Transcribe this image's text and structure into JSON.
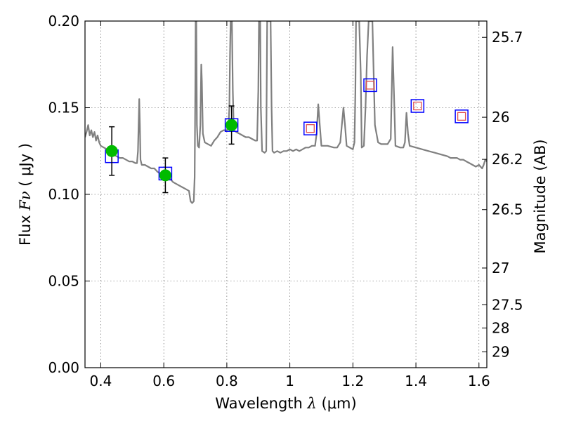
{
  "chart_data": {
    "type": "scatter",
    "x_axis": {
      "title_prefix": "Wavelength  ",
      "title_symbol": "λ",
      "title_suffix": " (μm)",
      "range": [
        0.35,
        1.625
      ],
      "ticks": [
        0.4,
        0.6,
        0.8,
        1.0,
        1.2,
        1.4,
        1.6
      ],
      "tick_labels": [
        "0.4",
        "0.6",
        "0.8",
        "1",
        "1.2",
        "1.4",
        "1.6"
      ]
    },
    "y_axis": {
      "title_prefix": "Flux  ",
      "title_symbol": "Fν",
      "title_suffix": "  ( μJy )",
      "range": [
        0.0,
        0.2
      ],
      "ticks": [
        0.0,
        0.05,
        0.1,
        0.15,
        0.2
      ],
      "tick_labels": [
        "0.00",
        "0.05",
        "0.10",
        "0.15",
        "0.20"
      ]
    },
    "y2_axis": {
      "title": "Magnitude (AB)",
      "ticks": [
        {
          "label": "25.7",
          "flux": 0.1906
        },
        {
          "label": "26",
          "flux": 0.1445
        },
        {
          "label": "26.2",
          "flux": 0.1202
        },
        {
          "label": "26.5",
          "flux": 0.0912
        },
        {
          "label": "27",
          "flux": 0.0575
        },
        {
          "label": "27.5",
          "flux": 0.0363
        },
        {
          "label": "28",
          "flux": 0.0229
        },
        {
          "label": "29",
          "flux": 0.0091
        }
      ]
    },
    "grid": true,
    "colors": {
      "spectrum": "#808080",
      "measured": "#00bb00",
      "model_box": "#0000ff",
      "predicted": "#e05050",
      "errorbar": "#000000"
    },
    "series": [
      {
        "type": "line",
        "points": [
          [
            0.35,
            0.133
          ],
          [
            0.355,
            0.136
          ],
          [
            0.36,
            0.14
          ],
          [
            0.365,
            0.134
          ],
          [
            0.37,
            0.137
          ],
          [
            0.375,
            0.133
          ],
          [
            0.38,
            0.136
          ],
          [
            0.385,
            0.131
          ],
          [
            0.39,
            0.134
          ],
          [
            0.395,
            0.13
          ],
          [
            0.4,
            0.128
          ],
          [
            0.41,
            0.127
          ],
          [
            0.42,
            0.126
          ],
          [
            0.43,
            0.125
          ],
          [
            0.44,
            0.123
          ],
          [
            0.45,
            0.122
          ],
          [
            0.46,
            0.121
          ],
          [
            0.47,
            0.121
          ],
          [
            0.48,
            0.12
          ],
          [
            0.49,
            0.119
          ],
          [
            0.5,
            0.119
          ],
          [
            0.51,
            0.118
          ],
          [
            0.515,
            0.118
          ],
          [
            0.518,
            0.125
          ],
          [
            0.52,
            0.14
          ],
          [
            0.522,
            0.155
          ],
          [
            0.524,
            0.14
          ],
          [
            0.526,
            0.12
          ],
          [
            0.53,
            0.117
          ],
          [
            0.54,
            0.117
          ],
          [
            0.55,
            0.116
          ],
          [
            0.56,
            0.115
          ],
          [
            0.57,
            0.115
          ],
          [
            0.58,
            0.113
          ],
          [
            0.59,
            0.112
          ],
          [
            0.6,
            0.111
          ],
          [
            0.61,
            0.11
          ],
          [
            0.62,
            0.109
          ],
          [
            0.63,
            0.107
          ],
          [
            0.64,
            0.106
          ],
          [
            0.65,
            0.105
          ],
          [
            0.66,
            0.104
          ],
          [
            0.67,
            0.103
          ],
          [
            0.68,
            0.102
          ],
          [
            0.685,
            0.096
          ],
          [
            0.69,
            0.095
          ],
          [
            0.695,
            0.096
          ],
          [
            0.698,
            0.11
          ],
          [
            0.7,
            0.16
          ],
          [
            0.701,
            0.2
          ],
          [
            0.703,
            0.2
          ],
          [
            0.705,
            0.14
          ],
          [
            0.708,
            0.128
          ],
          [
            0.712,
            0.127
          ],
          [
            0.716,
            0.14
          ],
          [
            0.719,
            0.175
          ],
          [
            0.721,
            0.165
          ],
          [
            0.724,
            0.135
          ],
          [
            0.73,
            0.13
          ],
          [
            0.74,
            0.129
          ],
          [
            0.75,
            0.128
          ],
          [
            0.76,
            0.131
          ],
          [
            0.77,
            0.133
          ],
          [
            0.78,
            0.136
          ],
          [
            0.79,
            0.137
          ],
          [
            0.8,
            0.137
          ],
          [
            0.805,
            0.138
          ],
          [
            0.808,
            0.15
          ],
          [
            0.81,
            0.18
          ],
          [
            0.812,
            0.2
          ],
          [
            0.816,
            0.2
          ],
          [
            0.819,
            0.16
          ],
          [
            0.822,
            0.137
          ],
          [
            0.83,
            0.136
          ],
          [
            0.84,
            0.135
          ],
          [
            0.85,
            0.134
          ],
          [
            0.86,
            0.133
          ],
          [
            0.87,
            0.133
          ],
          [
            0.88,
            0.132
          ],
          [
            0.89,
            0.131
          ],
          [
            0.896,
            0.131
          ],
          [
            0.9,
            0.16
          ],
          [
            0.902,
            0.2
          ],
          [
            0.906,
            0.2
          ],
          [
            0.908,
            0.15
          ],
          [
            0.912,
            0.125
          ],
          [
            0.92,
            0.124
          ],
          [
            0.925,
            0.125
          ],
          [
            0.928,
            0.2
          ],
          [
            0.936,
            0.2
          ],
          [
            0.939,
            0.2
          ],
          [
            0.942,
            0.15
          ],
          [
            0.945,
            0.125
          ],
          [
            0.95,
            0.124
          ],
          [
            0.96,
            0.125
          ],
          [
            0.97,
            0.124
          ],
          [
            0.98,
            0.125
          ],
          [
            0.99,
            0.125
          ],
          [
            1.0,
            0.126
          ],
          [
            1.01,
            0.125
          ],
          [
            1.02,
            0.126
          ],
          [
            1.03,
            0.125
          ],
          [
            1.04,
            0.126
          ],
          [
            1.05,
            0.127
          ],
          [
            1.06,
            0.127
          ],
          [
            1.07,
            0.128
          ],
          [
            1.08,
            0.128
          ],
          [
            1.085,
            0.135
          ],
          [
            1.09,
            0.152
          ],
          [
            1.095,
            0.14
          ],
          [
            1.1,
            0.128
          ],
          [
            1.12,
            0.128
          ],
          [
            1.14,
            0.127
          ],
          [
            1.15,
            0.127
          ],
          [
            1.16,
            0.13
          ],
          [
            1.165,
            0.14
          ],
          [
            1.17,
            0.15
          ],
          [
            1.175,
            0.14
          ],
          [
            1.18,
            0.128
          ],
          [
            1.19,
            0.127
          ],
          [
            1.2,
            0.126
          ],
          [
            1.205,
            0.13
          ],
          [
            1.208,
            0.16
          ],
          [
            1.21,
            0.2
          ],
          [
            1.22,
            0.2
          ],
          [
            1.225,
            0.17
          ],
          [
            1.228,
            0.127
          ],
          [
            1.235,
            0.128
          ],
          [
            1.24,
            0.15
          ],
          [
            1.245,
            0.18
          ],
          [
            1.25,
            0.2
          ],
          [
            1.262,
            0.2
          ],
          [
            1.266,
            0.17
          ],
          [
            1.27,
            0.14
          ],
          [
            1.28,
            0.13
          ],
          [
            1.29,
            0.129
          ],
          [
            1.3,
            0.129
          ],
          [
            1.31,
            0.129
          ],
          [
            1.32,
            0.132
          ],
          [
            1.326,
            0.185
          ],
          [
            1.33,
            0.16
          ],
          [
            1.335,
            0.128
          ],
          [
            1.35,
            0.127
          ],
          [
            1.36,
            0.127
          ],
          [
            1.365,
            0.13
          ],
          [
            1.37,
            0.147
          ],
          [
            1.375,
            0.135
          ],
          [
            1.38,
            0.128
          ],
          [
            1.4,
            0.127
          ],
          [
            1.42,
            0.126
          ],
          [
            1.44,
            0.125
          ],
          [
            1.46,
            0.124
          ],
          [
            1.48,
            0.123
          ],
          [
            1.5,
            0.122
          ],
          [
            1.51,
            0.121
          ],
          [
            1.52,
            0.121
          ],
          [
            1.53,
            0.121
          ],
          [
            1.54,
            0.12
          ],
          [
            1.55,
            0.12
          ],
          [
            1.56,
            0.119
          ],
          [
            1.57,
            0.118
          ],
          [
            1.58,
            0.117
          ],
          [
            1.59,
            0.116
          ],
          [
            1.6,
            0.117
          ],
          [
            1.61,
            0.115
          ],
          [
            1.615,
            0.117
          ],
          [
            1.62,
            0.12
          ],
          [
            1.625,
            0.119
          ]
        ]
      },
      {
        "type": "scatter",
        "marker": "square",
        "x": [
          0.435,
          0.605,
          0.815,
          1.065,
          1.255,
          1.405,
          1.545
        ],
        "y": [
          0.122,
          0.112,
          0.14,
          0.138,
          0.163,
          0.151,
          0.145
        ]
      },
      {
        "type": "scatter",
        "marker": "circle",
        "x": [
          0.435,
          0.605,
          0.815
        ],
        "y": [
          0.125,
          0.111,
          0.14
        ],
        "yerr": [
          0.014,
          0.01,
          0.011
        ]
      },
      {
        "type": "scatter",
        "marker": "small-square",
        "x": [
          1.065,
          1.255,
          1.405,
          1.545
        ],
        "y": [
          0.138,
          0.163,
          0.151,
          0.145
        ]
      }
    ]
  }
}
